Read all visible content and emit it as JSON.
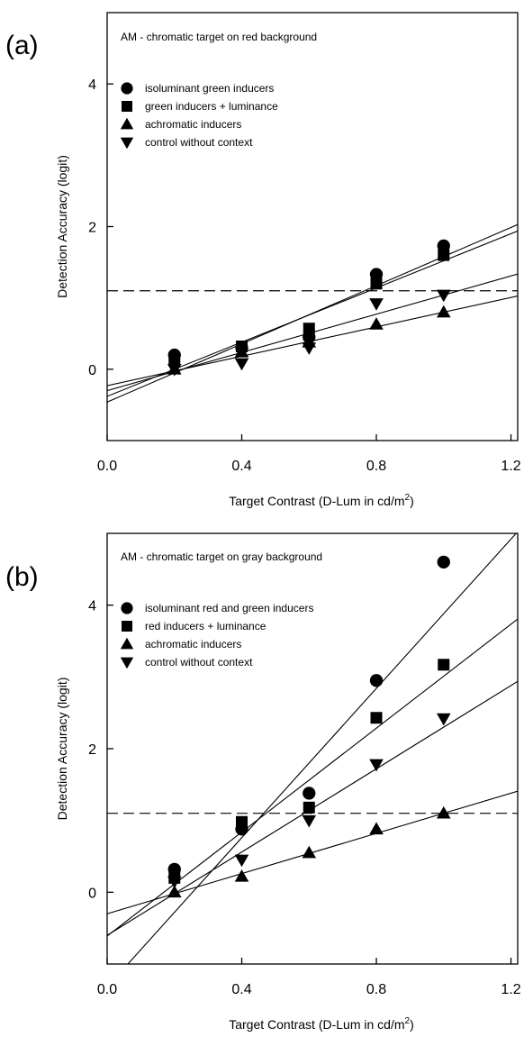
{
  "chart_data": [
    {
      "type": "scatter",
      "panel_label": "(a)",
      "title": "AM - chromatic target on red background",
      "xlabel": "Target Contrast (D-Lum in cd/m",
      "xlabel_sup": "2",
      "xlabel_end": ")",
      "ylabel": "Detection Accuracy (logit)",
      "xlim": [
        0.0,
        1.22
      ],
      "ylim": [
        -1.0,
        5.0
      ],
      "xticks": [
        0.0,
        0.4,
        0.8,
        1.2
      ],
      "xtick_labels": [
        "0.0",
        "0.4",
        "0.8",
        "1.2"
      ],
      "yticks": [
        0,
        2,
        4
      ],
      "ytick_labels": [
        "0",
        "2",
        "4"
      ],
      "grid": false,
      "legend_position": "top-left",
      "threshold": 1.1,
      "series": [
        {
          "name": "isoluminant green inducers",
          "marker": "circle",
          "x": [
            0.2,
            0.4,
            0.6,
            0.8,
            1.0
          ],
          "y": [
            0.2,
            0.3,
            0.45,
            1.33,
            1.73
          ],
          "fit": {
            "intercept": -0.46,
            "slope": 2.04
          }
        },
        {
          "name": "green inducers + luminance",
          "marker": "square",
          "x": [
            0.2,
            0.4,
            0.6,
            0.8,
            1.0
          ],
          "y": [
            0.12,
            0.32,
            0.57,
            1.2,
            1.6
          ],
          "fit": {
            "intercept": -0.38,
            "slope": 1.9
          }
        },
        {
          "name": "achromatic inducers",
          "marker": "triangle-up",
          "x": [
            0.2,
            0.4,
            0.6,
            0.8,
            1.0
          ],
          "y": [
            0.0,
            0.24,
            0.38,
            0.63,
            0.8
          ],
          "fit": {
            "intercept": -0.23,
            "slope": 1.03
          }
        },
        {
          "name": "control without context",
          "marker": "triangle-down",
          "x": [
            0.2,
            0.4,
            0.6,
            0.8,
            1.0
          ],
          "y": [
            0.0,
            0.08,
            0.3,
            0.92,
            1.04
          ],
          "fit": {
            "intercept": -0.3,
            "slope": 1.34
          }
        }
      ]
    },
    {
      "type": "scatter",
      "panel_label": "(b)",
      "title": "AM - chromatic target on gray background",
      "xlabel": "Target Contrast (D-Lum in cd/m",
      "xlabel_sup": "2",
      "xlabel_end": ")",
      "ylabel": "Detection Accuracy (logit)",
      "xlim": [
        0.0,
        1.22
      ],
      "ylim": [
        -1.0,
        5.0
      ],
      "xticks": [
        0.0,
        0.4,
        0.8,
        1.2
      ],
      "xtick_labels": [
        "0.0",
        "0.4",
        "0.8",
        "1.2"
      ],
      "yticks": [
        0,
        2,
        4
      ],
      "ytick_labels": [
        "0",
        "2",
        "4"
      ],
      "grid": false,
      "legend_position": "top-left",
      "threshold": 1.1,
      "series": [
        {
          "name": "isoluminant red and green inducers",
          "marker": "circle",
          "x": [
            0.2,
            0.4,
            0.6,
            0.8,
            1.0
          ],
          "y": [
            0.32,
            0.88,
            1.38,
            2.95,
            4.6
          ],
          "fit": {
            "intercept": -1.32,
            "slope": 5.2
          }
        },
        {
          "name": "red inducers + luminance",
          "marker": "square",
          "x": [
            0.2,
            0.4,
            0.6,
            0.8,
            1.0
          ],
          "y": [
            0.2,
            0.98,
            1.18,
            2.43,
            3.17
          ],
          "fit": {
            "intercept": -0.61,
            "slope": 3.62
          }
        },
        {
          "name": "achromatic inducers",
          "marker": "triangle-up",
          "x": [
            0.2,
            0.4,
            0.6,
            0.8,
            1.0
          ],
          "y": [
            0.0,
            0.22,
            0.55,
            0.88,
            1.1
          ],
          "fit": {
            "intercept": -0.3,
            "slope": 1.4
          }
        },
        {
          "name": "control without context",
          "marker": "triangle-down",
          "x": [
            0.2,
            0.4,
            0.6,
            0.8,
            1.0
          ],
          "y": [
            0.15,
            0.45,
            1.0,
            1.78,
            2.42
          ],
          "fit": {
            "intercept": -0.6,
            "slope": 2.9
          }
        }
      ]
    }
  ]
}
